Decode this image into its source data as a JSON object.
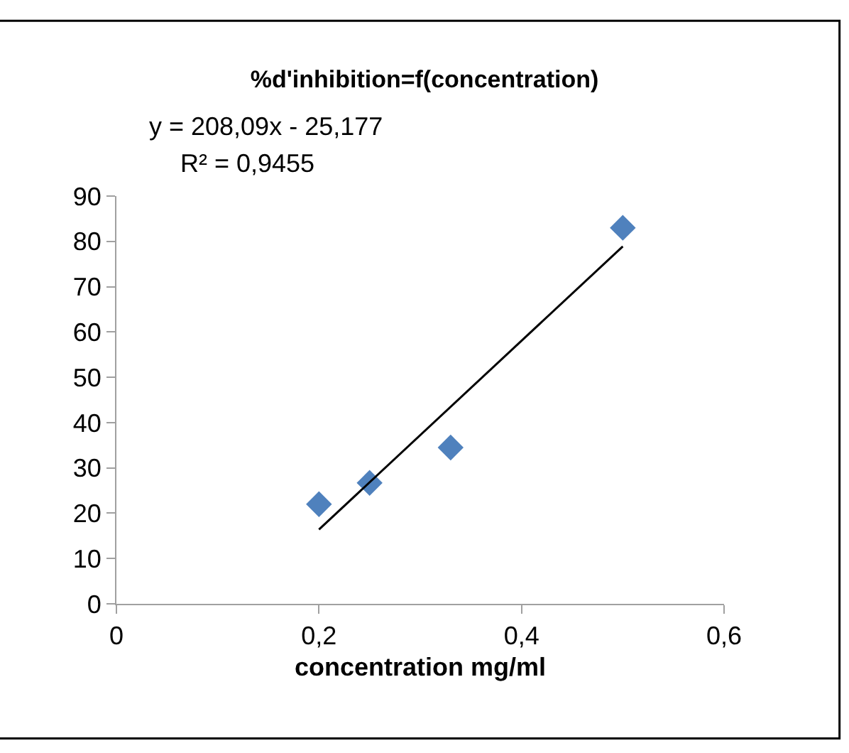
{
  "chart_data": {
    "type": "scatter",
    "title": "%d'inhibition=f(concentration)",
    "xlabel": "concentration mg/ml",
    "annotations": [
      "y = 208,09x - 25,177",
      "R² = 0,9455"
    ],
    "series": [
      {
        "color": "#4f81bd",
        "marker": "diamond",
        "x": [
          0.2,
          0.25,
          0.33,
          0.5
        ],
        "values": [
          22,
          26.7,
          34.5,
          83
        ]
      },
      {
        "type": "line",
        "color": "#000000",
        "marker": "none",
        "line_style": "solid",
        "x": [
          0.2,
          0.5
        ],
        "values": [
          16.4,
          78.9
        ]
      }
    ],
    "xlim": [
      0,
      0.6
    ],
    "xticks": [
      0,
      {
        "value": 0.2,
        "label": "0,2"
      },
      {
        "value": 0.4,
        "label": "0,4"
      },
      {
        "value": 0.6,
        "label": "0,6"
      }
    ],
    "ylim": [
      0,
      90
    ],
    "yticks": [
      0,
      10,
      20,
      30,
      40,
      50,
      60,
      70,
      80,
      90
    ]
  }
}
